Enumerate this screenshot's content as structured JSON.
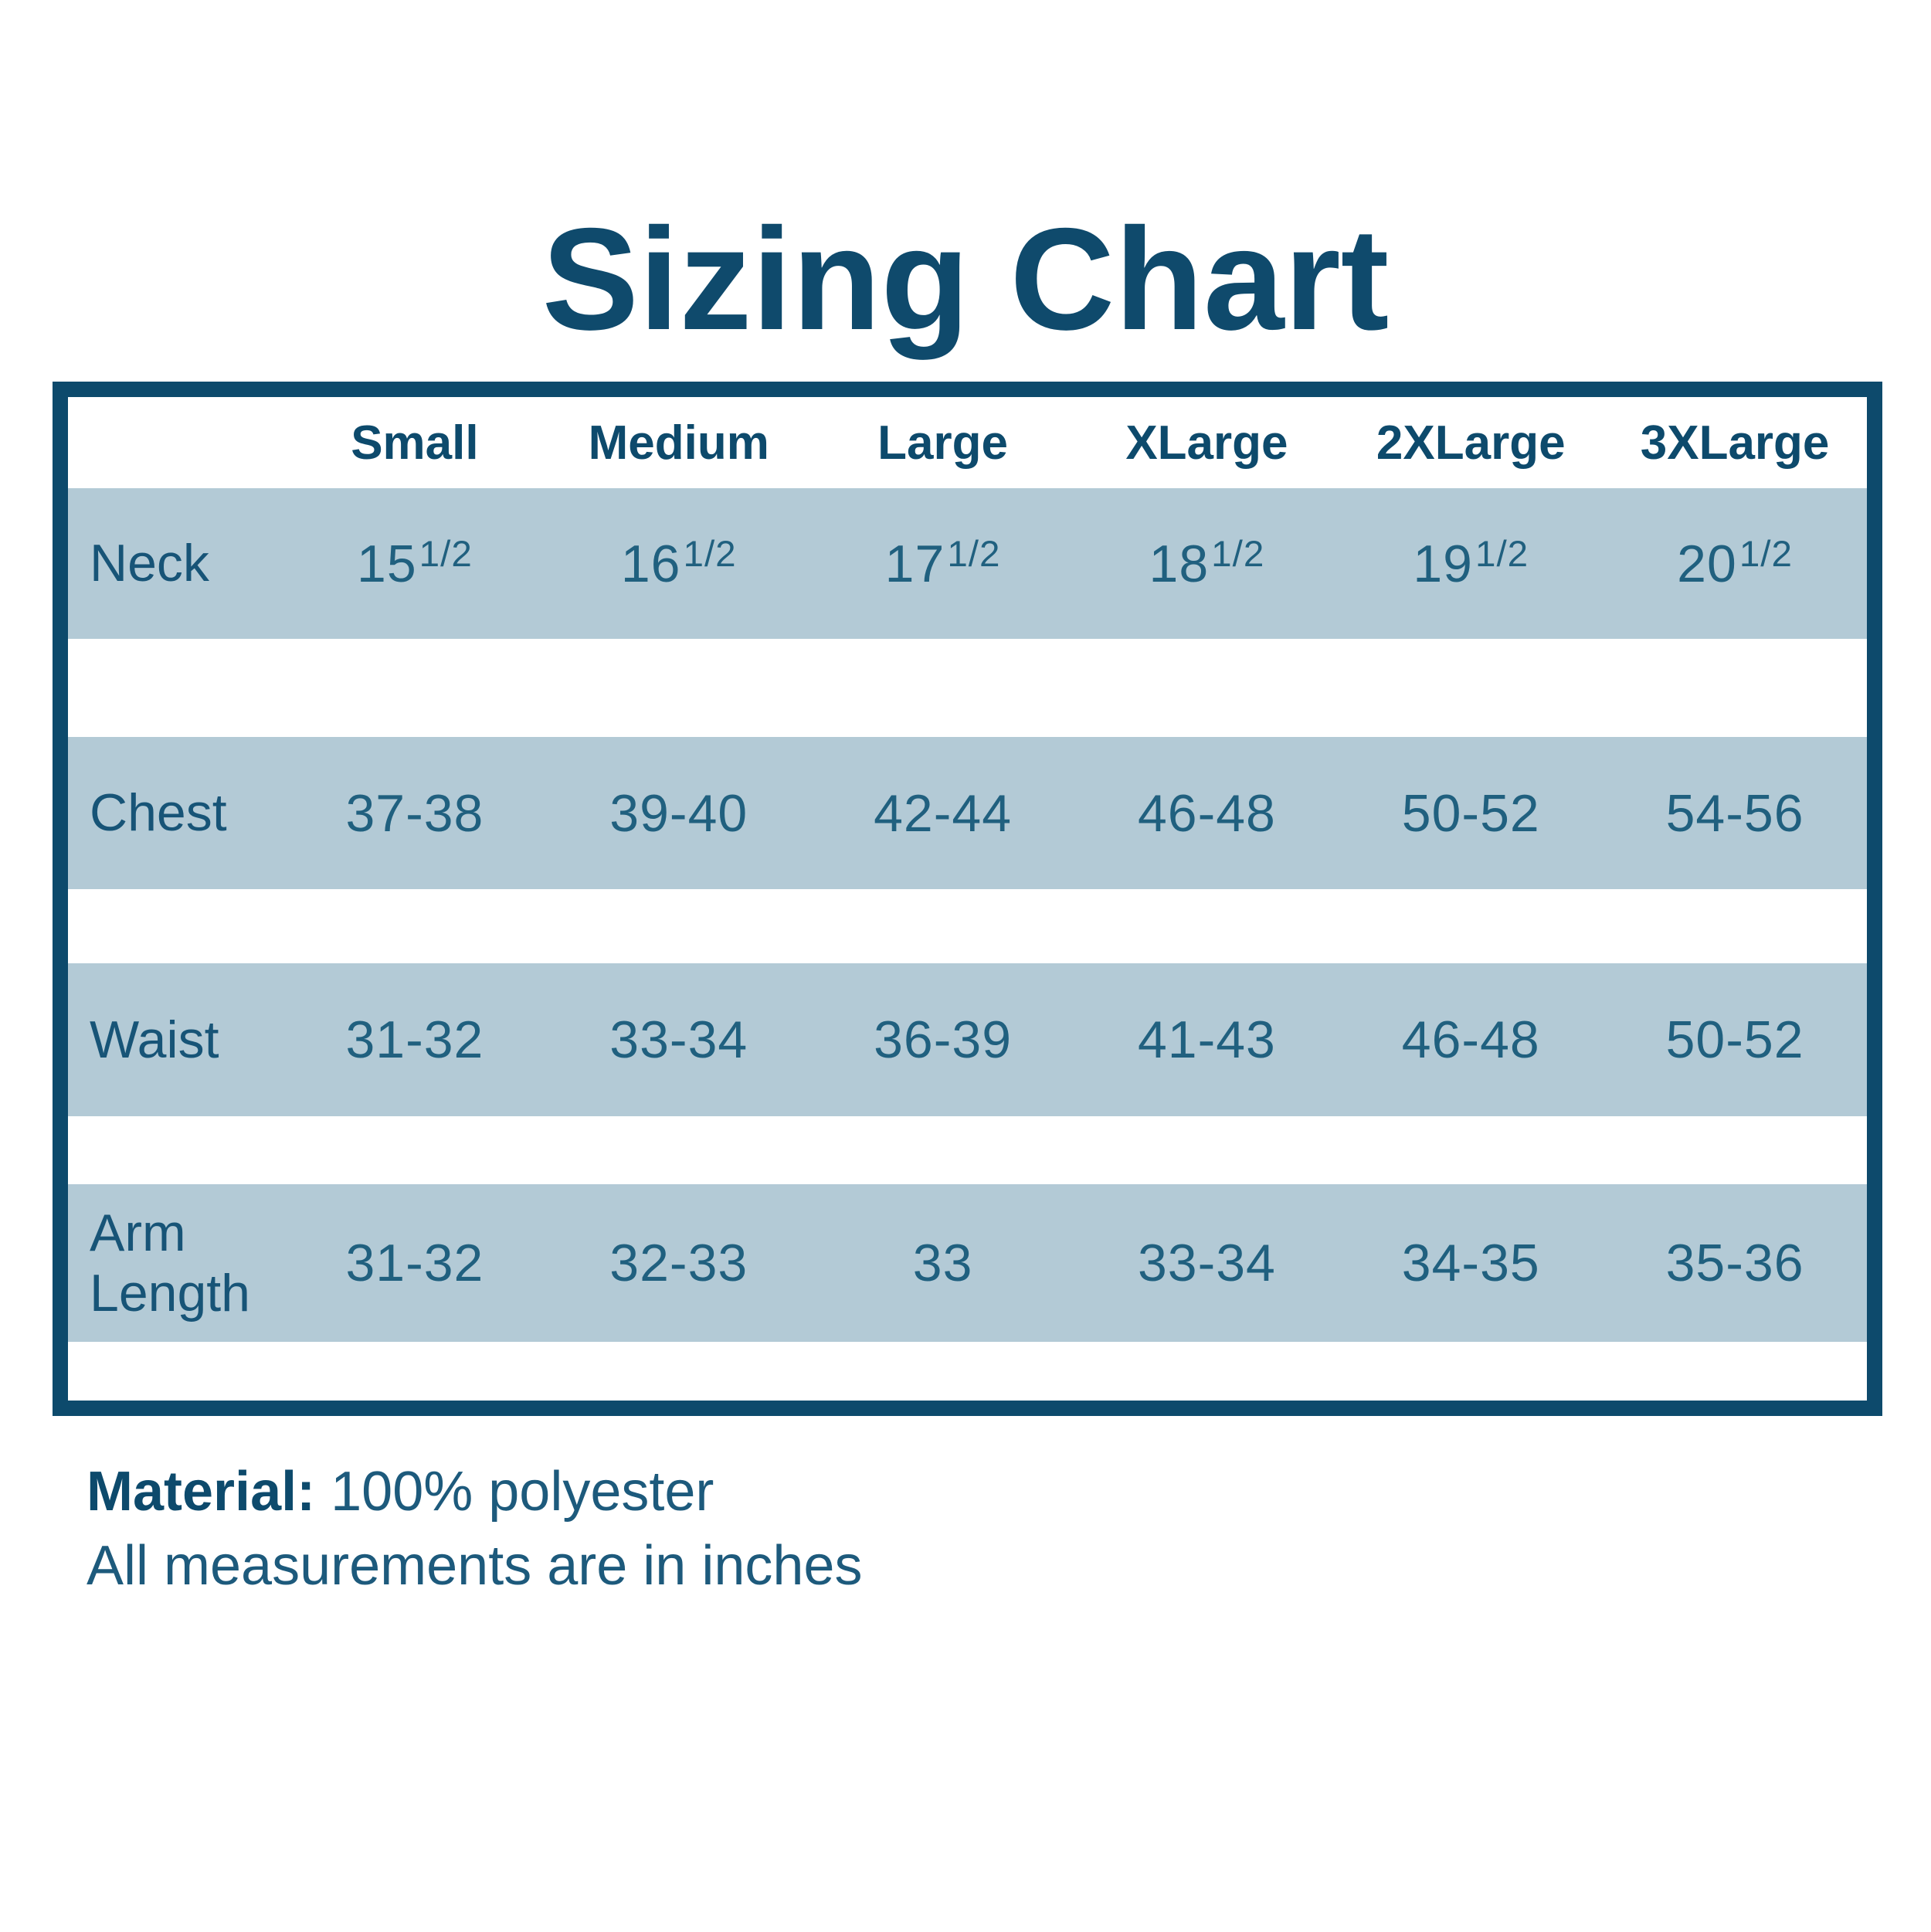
{
  "title": "Sizing Chart",
  "table": {
    "columns": [
      "Small",
      "Medium",
      "Large",
      "XLarge",
      "2XLarge",
      "3XLarge"
    ],
    "rows": [
      {
        "label": "Neck",
        "values": [
          {
            "main": "15",
            "sup": "1/2"
          },
          {
            "main": "16",
            "sup": "1/2"
          },
          {
            "main": "17",
            "sup": "1/2"
          },
          {
            "main": "18",
            "sup": "1/2"
          },
          {
            "main": "19",
            "sup": "1/2"
          },
          {
            "main": "20",
            "sup": "1/2"
          }
        ]
      },
      {
        "label": "Chest",
        "values": [
          "37-38",
          "39-40",
          "42-44",
          "46-48",
          "50-52",
          "54-56"
        ]
      },
      {
        "label": "Waist",
        "values": [
          "31-32",
          "33-34",
          "36-39",
          "41-43",
          "46-48",
          "50-52"
        ]
      },
      {
        "label": "Arm Length",
        "values": [
          "31-32",
          "32-33",
          "33",
          "33-34",
          "34-35",
          "35-36"
        ]
      }
    ]
  },
  "footer": {
    "material_label": "Material:",
    "material_value": "100% polyester",
    "note": "All measurements are in inches"
  },
  "colors": {
    "accent_dark": "#0d4a6c",
    "value_text": "#20607f",
    "band_background": "#b3cad6",
    "page_background": "#ffffff"
  },
  "chart_data": {
    "type": "table",
    "title": "Sizing Chart",
    "columns": [
      "Small",
      "Medium",
      "Large",
      "XLarge",
      "2XLarge",
      "3XLarge"
    ],
    "rows": [
      {
        "label": "Neck",
        "values": [
          "15 1/2",
          "16 1/2",
          "17 1/2",
          "18 1/2",
          "19 1/2",
          "20 1/2"
        ]
      },
      {
        "label": "Chest",
        "values": [
          "37-38",
          "39-40",
          "42-44",
          "46-48",
          "50-52",
          "54-56"
        ]
      },
      {
        "label": "Waist",
        "values": [
          "31-32",
          "33-34",
          "36-39",
          "41-43",
          "46-48",
          "50-52"
        ]
      },
      {
        "label": "Arm Length",
        "values": [
          "31-32",
          "32-33",
          "33",
          "33-34",
          "34-35",
          "35-36"
        ]
      }
    ],
    "notes": [
      "Material: 100% polyester",
      "All measurements are in inches"
    ],
    "layout": "striped rows, blue bands on white, dark navy outer border"
  }
}
